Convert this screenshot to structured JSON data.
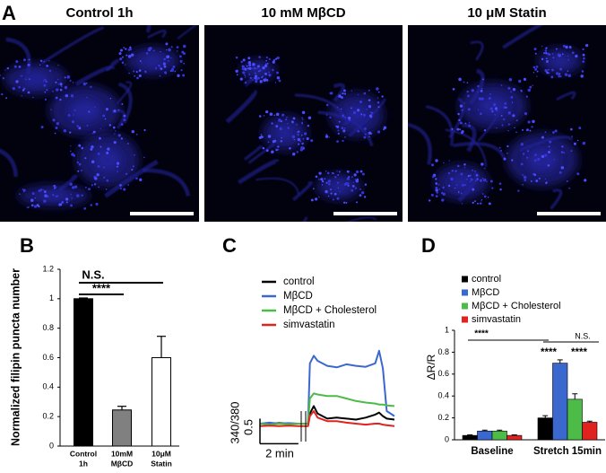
{
  "panel_a": {
    "label": "A",
    "images": [
      {
        "title": "Control 1h"
      },
      {
        "title": "10 mM MβCD"
      },
      {
        "title": "10 μM Statin"
      }
    ]
  },
  "chart_data": [
    {
      "panel_label": "B",
      "type": "bar",
      "ylabel": "Normalized filipin puncta number",
      "categories": [
        [
          "Control",
          "1h"
        ],
        [
          "10mM",
          "MβCD"
        ],
        [
          "10μM",
          "Statin"
        ]
      ],
      "values": [
        1,
        0.245,
        0.6
      ],
      "errors": [
        0.005,
        0.025,
        0.145
      ],
      "colors": [
        "#000000",
        "#808080",
        "#ffffff"
      ],
      "edgecolor": "#000000",
      "ylim": [
        0,
        1.2
      ],
      "yticks": [
        0,
        0.2,
        0.4,
        0.6,
        0.8,
        1,
        1.2
      ],
      "annotations": [
        {
          "text": "N.S."
        },
        {
          "text": "****"
        }
      ]
    },
    {
      "panel_label": "C",
      "type": "line",
      "x": [
        0,
        0.5,
        1,
        1.5,
        2,
        2.5,
        2.6,
        2.8,
        3,
        3.5,
        4,
        4.5,
        5,
        5.5,
        6,
        6.2,
        6.4,
        6.6,
        7
      ],
      "series": [
        {
          "name": "control",
          "color": "#000000",
          "values": [
            1.0,
            1.0,
            1.01,
            1.0,
            1.0,
            1.0,
            1.2,
            1.35,
            1.2,
            1.1,
            1.12,
            1.1,
            1.08,
            1.12,
            1.18,
            1.22,
            1.15,
            1.1,
            1.08
          ]
        },
        {
          "name": "MβCD",
          "color": "#3a68cf",
          "values": [
            1.0,
            1.02,
            1.0,
            1.01,
            1.0,
            1.0,
            2.2,
            2.35,
            2.25,
            2.15,
            2.12,
            2.18,
            2.15,
            2.13,
            2.2,
            2.45,
            2.1,
            1.25,
            1.15
          ]
        },
        {
          "name": "MβCD + Cholesterol",
          "color": "#4cbb47",
          "values": [
            1.0,
            0.98,
            1.0,
            0.99,
            1.0,
            1.0,
            1.5,
            1.6,
            1.58,
            1.55,
            1.55,
            1.5,
            1.45,
            1.42,
            1.4,
            1.38,
            1.38,
            1.36,
            1.35
          ]
        },
        {
          "name": "simvastatin",
          "color": "#e0231f",
          "values": [
            0.95,
            0.96,
            0.95,
            0.96,
            0.95,
            0.95,
            1.15,
            1.25,
            1.12,
            1.05,
            1.05,
            1.02,
            1.0,
            0.98,
            1.0,
            1.0,
            0.98,
            0.97,
            0.95
          ]
        }
      ],
      "xlim": [
        0,
        7
      ],
      "ylim": [
        0.6,
        2.6
      ],
      "scale_bar": {
        "y_value": 0.5,
        "y_label": "340/380",
        "x_value": 2,
        "x_label": "2 min"
      }
    },
    {
      "panel_label": "D",
      "type": "grouped_bar",
      "ylabel": "ΔR/R",
      "categories": [
        "Baseline",
        "Stretch 15min"
      ],
      "series": [
        {
          "name": "control",
          "color": "#000000",
          "values": [
            0.04,
            0.2
          ],
          "errors": [
            0.005,
            0.02
          ]
        },
        {
          "name": "MβCD",
          "color": "#3a68cf",
          "values": [
            0.08,
            0.7
          ],
          "errors": [
            0.008,
            0.03
          ]
        },
        {
          "name": "MβCD + Cholesterol",
          "color": "#4cbb47",
          "values": [
            0.08,
            0.37
          ],
          "errors": [
            0.008,
            0.05
          ]
        },
        {
          "name": "simvastatin",
          "color": "#e0231f",
          "values": [
            0.04,
            0.16
          ],
          "errors": [
            0.005,
            0.01
          ]
        }
      ],
      "ylim": [
        0,
        1
      ],
      "yticks": [
        0,
        0.2,
        0.4,
        0.6,
        0.8,
        1
      ],
      "annotations": [
        {
          "text": "****"
        },
        {
          "text": "N.S."
        },
        {
          "text": "****"
        },
        {
          "text": "****"
        }
      ]
    }
  ]
}
